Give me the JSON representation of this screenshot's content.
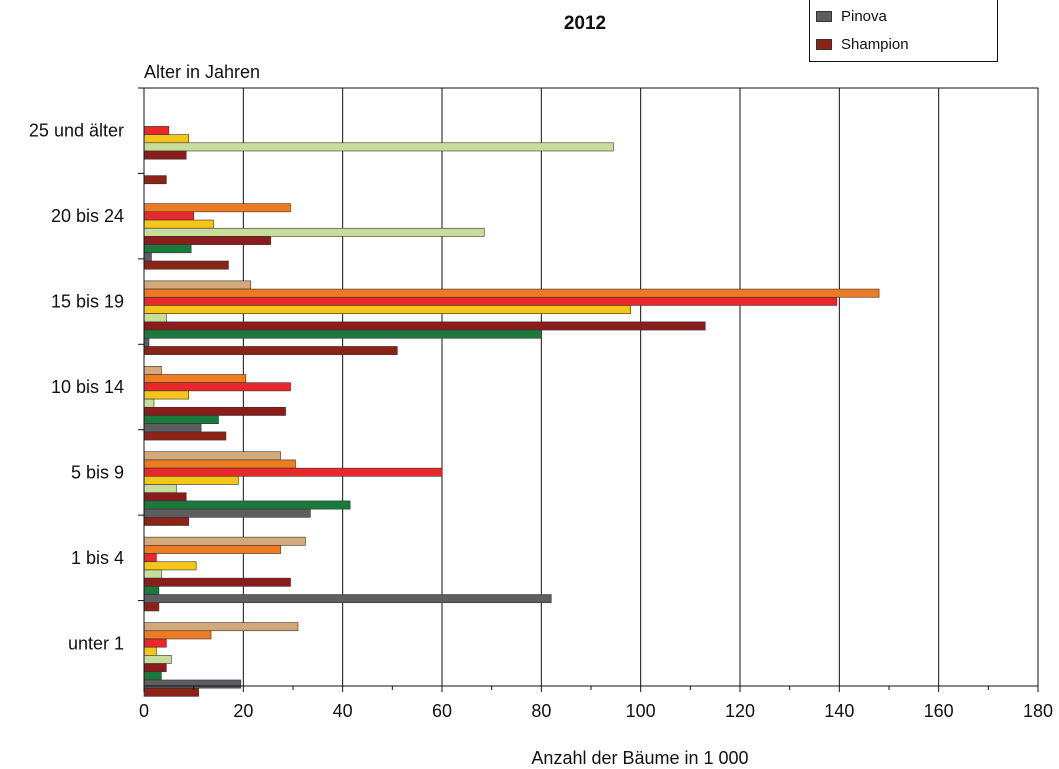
{
  "chart_data": {
    "type": "bar",
    "orientation": "horizontal",
    "title": "2012",
    "xlabel": "Anzahl der Bäume in 1 000",
    "ylabel": "Alter in Jahren",
    "xlim": [
      0,
      180
    ],
    "xticks": [
      0,
      20,
      40,
      60,
      80,
      100,
      120,
      140,
      160,
      180
    ],
    "grid": true,
    "legend_position": "top-right",
    "categories": [
      "25 und älter",
      "20 bis 24",
      "15 bis 19",
      "10 bis 14",
      "5 bis 9",
      "1 bis 4",
      "unter 1"
    ],
    "series": [
      {
        "color": "#d4a97a",
        "values": [
          0,
          0,
          21.5,
          3.5,
          27.5,
          32.5,
          31
        ]
      },
      {
        "color": "#ee7a22",
        "values": [
          0,
          29.5,
          148,
          20.5,
          30.5,
          27.5,
          13.5
        ]
      },
      {
        "color": "#e8282a",
        "values": [
          5,
          10,
          139.5,
          29.5,
          60,
          2.5,
          4.5
        ]
      },
      {
        "color": "#f5c518",
        "values": [
          9,
          14,
          98,
          9,
          19,
          10.5,
          2.5
        ]
      },
      {
        "color": "#c9dd9a",
        "values": [
          94.5,
          68.5,
          4.5,
          2,
          6.5,
          3.5,
          5.5
        ]
      },
      {
        "color": "#8c1c1c",
        "values": [
          8.5,
          25.5,
          113,
          28.5,
          8.5,
          29.5,
          4.5
        ]
      },
      {
        "color": "#1a7a3c",
        "values": [
          0,
          9.5,
          80,
          15,
          41.5,
          3,
          3.5
        ]
      },
      {
        "name": "Pinova",
        "color": "#5e5e62",
        "values": [
          0,
          1.5,
          1,
          11.5,
          33.5,
          82,
          19.5
        ]
      },
      {
        "name": "Shampion",
        "color": "#8b2316",
        "values": [
          4.5,
          17,
          51,
          16.5,
          9,
          3,
          11
        ]
      }
    ]
  }
}
